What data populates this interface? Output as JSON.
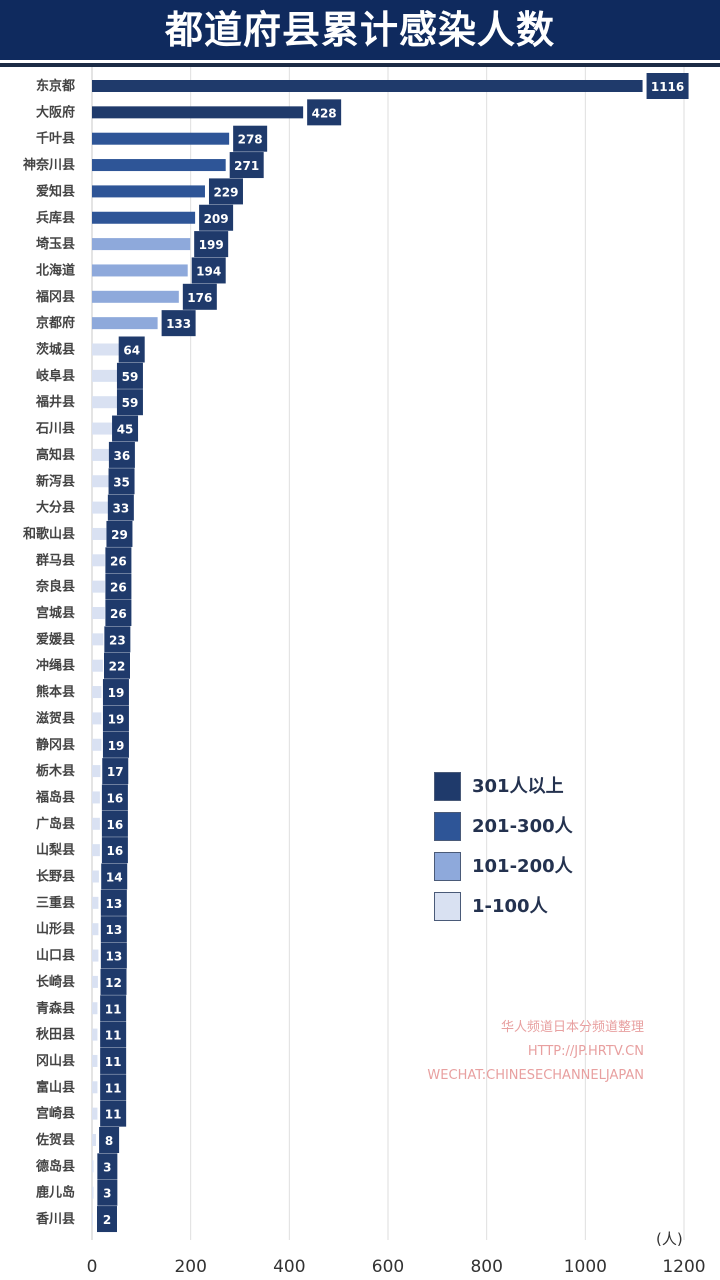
{
  "header": {
    "title": "都道府县累计感染人数"
  },
  "colors": {
    "header_bg": "#0f2a5e",
    "tier_301_plus": "#1f3a6b",
    "tier_201_300": "#2e5597",
    "tier_101_200": "#8ea9db",
    "tier_1_100": "#d9e1f2",
    "label_box": "#1f3a6b",
    "credit_text": "#e8a0a0"
  },
  "legend": {
    "items": [
      {
        "label": "301人以上",
        "color": "#1f3a6b"
      },
      {
        "label": "201-300人",
        "color": "#2e5597"
      },
      {
        "label": "101-200人",
        "color": "#8ea9db"
      },
      {
        "label": "1-100人",
        "color": "#d9e1f2"
      }
    ]
  },
  "credit": {
    "line1": "华人频道日本分频道整理",
    "line2": "HTTP://JP.HRTV.CN",
    "line3": "WECHAT:CHINESECHANNELJAPAN"
  },
  "chart_data": {
    "type": "bar",
    "orientation": "horizontal",
    "title": "都道府县累计感染人数",
    "xlabel": "(人)",
    "ylabel": "",
    "xlim": [
      0,
      1200
    ],
    "xticks": [
      "0",
      "200",
      "400",
      "600",
      "800",
      "1000",
      "1200"
    ],
    "grid": true,
    "legend_position": "right",
    "categories": [
      "东京都",
      "大阪府",
      "千叶县",
      "神奈川县",
      "爱知县",
      "兵库县",
      "埼玉县",
      "北海道",
      "福冈县",
      "京都府",
      "茨城县",
      "岐阜县",
      "福井县",
      "石川县",
      "高知县",
      "新泻县",
      "大分县",
      "和歌山县",
      "群马县",
      "奈良县",
      "宫城县",
      "爱媛县",
      "冲绳县",
      "熊本县",
      "滋贺县",
      "静冈县",
      "栃木县",
      "福岛县",
      "广岛县",
      "山梨县",
      "长野县",
      "三重县",
      "山形县",
      "山口县",
      "长崎县",
      "青森县",
      "秋田县",
      "冈山县",
      "富山县",
      "宫崎县",
      "佐贺县",
      "德岛县",
      "鹿儿岛",
      "香川县"
    ],
    "values": [
      1116,
      428,
      278,
      271,
      229,
      209,
      199,
      194,
      176,
      133,
      64,
      59,
      59,
      45,
      36,
      35,
      33,
      29,
      26,
      26,
      26,
      23,
      22,
      19,
      19,
      19,
      17,
      16,
      16,
      16,
      14,
      13,
      13,
      13,
      12,
      11,
      11,
      11,
      11,
      11,
      8,
      3,
      3,
      2
    ]
  }
}
